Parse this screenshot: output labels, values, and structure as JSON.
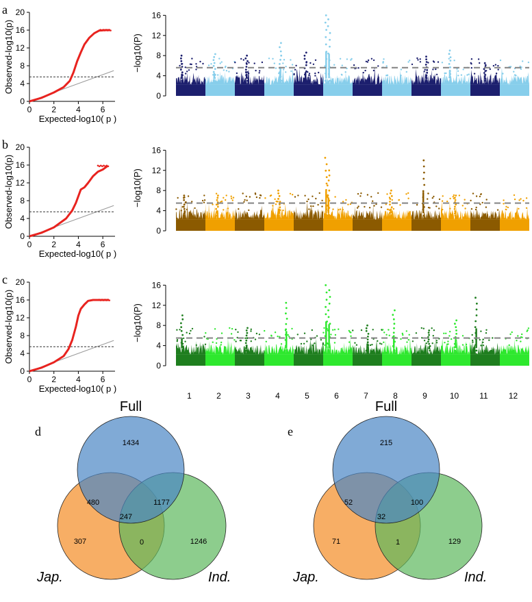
{
  "figure": {
    "panels": [
      {
        "label": "a",
        "qq": {
          "xlabel": "Expected-log10( p )",
          "ylabel": "Observed-log10(p)",
          "xticks": [
            "0",
            "2",
            "4",
            "6"
          ],
          "yticks": [
            "0",
            "4",
            "8",
            "12",
            "16",
            "20"
          ],
          "threshold": 5.5,
          "color": "#e8231f",
          "curve": [
            [
              0,
              0
            ],
            [
              1,
              0.8
            ],
            [
              2,
              2.0
            ],
            [
              2.8,
              3.2
            ],
            [
              3.3,
              4.6
            ],
            [
              3.6,
              6.5
            ],
            [
              3.9,
              9.0
            ],
            [
              4.2,
              11.0
            ],
            [
              4.5,
              12.8
            ],
            [
              4.9,
              14.3
            ],
            [
              5.3,
              15.3
            ],
            [
              5.7,
              15.9
            ],
            [
              6.2,
              16.0
            ],
            [
              6.6,
              16.0
            ]
          ]
        },
        "manhattan": {
          "ylabel": "−log10(P)",
          "yticks": [
            "0",
            "4",
            "8",
            "12",
            "16"
          ],
          "threshold": 5.6,
          "colors": [
            "#1c1f6e",
            "#87ceeb"
          ],
          "peaks": [
            {
              "chr": 1,
              "pos": 0.2,
              "value": 8.0
            },
            {
              "chr": 2,
              "pos": 0.3,
              "value": 8.3
            },
            {
              "chr": 3,
              "pos": 0.4,
              "value": 8.0
            },
            {
              "chr": 4,
              "pos": 0.55,
              "value": 10.5
            },
            {
              "chr": 5,
              "pos": 0.4,
              "value": 8.6
            },
            {
              "chr": 6,
              "pos": 0.1,
              "value": 16.0
            },
            {
              "chr": 6,
              "pos": 0.2,
              "value": 15.2
            },
            {
              "chr": 9,
              "pos": 0.5,
              "value": 7.8
            },
            {
              "chr": 10,
              "pos": 0.3,
              "value": 9.0
            },
            {
              "chr": 11,
              "pos": 0.5,
              "value": 6.5
            }
          ]
        }
      },
      {
        "label": "b",
        "qq": {
          "xlabel": "Expected-log10( p )",
          "ylabel": "Observed-log10(p)",
          "xticks": [
            "0",
            "2",
            "4",
            "6"
          ],
          "yticks": [
            "0",
            "4",
            "8",
            "12",
            "16",
            "20"
          ],
          "threshold": 5.5,
          "color": "#e8231f",
          "curve": [
            [
              0,
              0
            ],
            [
              1,
              0.8
            ],
            [
              2,
              2.0
            ],
            [
              3,
              4.0
            ],
            [
              3.5,
              5.8
            ],
            [
              3.8,
              7.5
            ],
            [
              4.0,
              9.0
            ],
            [
              4.2,
              10.5
            ],
            [
              4.5,
              11.0
            ],
            [
              4.8,
              12.0
            ],
            [
              5.2,
              13.5
            ],
            [
              5.6,
              14.5
            ],
            [
              6.0,
              15.0
            ],
            [
              6.4,
              15.8
            ]
          ]
        },
        "manhattan": {
          "ylabel": "−log10(P)",
          "yticks": [
            "0",
            "4",
            "8",
            "12",
            "16"
          ],
          "threshold": 5.5,
          "colors": [
            "#8b5a00",
            "#f0a000"
          ],
          "peaks": [
            {
              "chr": 1,
              "pos": 0.3,
              "value": 7.0
            },
            {
              "chr": 2,
              "pos": 0.4,
              "value": 7.0
            },
            {
              "chr": 4,
              "pos": 0.5,
              "value": 8.0
            },
            {
              "chr": 6,
              "pos": 0.1,
              "value": 14.5
            },
            {
              "chr": 6,
              "pos": 0.18,
              "value": 12.0
            },
            {
              "chr": 8,
              "pos": 0.3,
              "value": 8.0
            },
            {
              "chr": 9,
              "pos": 0.4,
              "value": 14.0
            },
            {
              "chr": 10,
              "pos": 0.5,
              "value": 7.0
            }
          ]
        }
      },
      {
        "label": "c",
        "qq": {
          "xlabel": "Expected-log10( p )",
          "ylabel": "Observed-log10(p)",
          "xticks": [
            "0",
            "2",
            "4",
            "6"
          ],
          "yticks": [
            "0",
            "4",
            "8",
            "12",
            "16",
            "20"
          ],
          "threshold": 5.5,
          "color": "#e8231f",
          "curve": [
            [
              0,
              0
            ],
            [
              1,
              0.8
            ],
            [
              2,
              2.0
            ],
            [
              2.8,
              3.4
            ],
            [
              3.2,
              5.0
            ],
            [
              3.5,
              7.0
            ],
            [
              3.8,
              10.0
            ],
            [
              4.0,
              12.5
            ],
            [
              4.2,
              14.0
            ],
            [
              4.5,
              15.0
            ],
            [
              4.8,
              15.8
            ],
            [
              5.2,
              16.0
            ],
            [
              6.5,
              16.0
            ]
          ]
        },
        "manhattan": {
          "ylabel": "−log10(P)",
          "yticks": [
            "0",
            "4",
            "8",
            "12",
            "16"
          ],
          "threshold": 5.5,
          "colors": [
            "#1e7e1e",
            "#2ee82e"
          ],
          "peaks": [
            {
              "chr": 1,
              "pos": 0.2,
              "value": 10.0
            },
            {
              "chr": 3,
              "pos": 0.4,
              "value": 7.5
            },
            {
              "chr": 4,
              "pos": 0.75,
              "value": 12.5
            },
            {
              "chr": 6,
              "pos": 0.1,
              "value": 16.0
            },
            {
              "chr": 6,
              "pos": 0.2,
              "value": 15.0
            },
            {
              "chr": 7,
              "pos": 0.5,
              "value": 8.0
            },
            {
              "chr": 8,
              "pos": 0.4,
              "value": 11.0
            },
            {
              "chr": 9,
              "pos": 0.6,
              "value": 7.0
            },
            {
              "chr": 10,
              "pos": 0.5,
              "value": 9.0
            },
            {
              "chr": 11,
              "pos": 0.2,
              "value": 13.5
            }
          ]
        }
      }
    ],
    "chromosomes": [
      "1",
      "2",
      "3",
      "4",
      "5",
      "6",
      "7",
      "8",
      "9",
      "10",
      "11",
      "12"
    ]
  },
  "venns": [
    {
      "label": "d",
      "sets": [
        "Full",
        "Jap.",
        "Ind."
      ],
      "colors": [
        "#4a86c5",
        "#f59a3e",
        "#5cb85c"
      ],
      "regions": {
        "full_only": "1434",
        "jap_only": "307",
        "ind_only": "1246",
        "full_jap": "480",
        "full_ind": "1177",
        "jap_ind": "0",
        "all": "247"
      }
    },
    {
      "label": "e",
      "sets": [
        "Full",
        "Jap.",
        "Ind."
      ],
      "colors": [
        "#4a86c5",
        "#f59a3e",
        "#5cb85c"
      ],
      "regions": {
        "full_only": "215",
        "jap_only": "71",
        "ind_only": "129",
        "full_jap": "52",
        "full_ind": "100",
        "jap_ind": "1",
        "all": "32"
      }
    }
  ],
  "chart_data": [
    {
      "type": "scatter",
      "panel": "a",
      "subtype": "qq",
      "xlabel": "Expected-log10( p )",
      "ylabel": "Observed-log10(p)",
      "xlim": [
        0,
        7
      ],
      "ylim": [
        0,
        20
      ],
      "threshold": 5.5
    },
    {
      "type": "scatter",
      "panel": "a",
      "subtype": "manhattan",
      "ylabel": "−log10(P)",
      "ylim": [
        0,
        17
      ],
      "threshold": 5.6,
      "categories": [
        "1",
        "2",
        "3",
        "4",
        "5",
        "6",
        "7",
        "8",
        "9",
        "10",
        "11",
        "12"
      ]
    },
    {
      "type": "scatter",
      "panel": "b",
      "subtype": "qq",
      "xlabel": "Expected-log10( p )",
      "ylabel": "Observed-log10(p)",
      "xlim": [
        0,
        7
      ],
      "ylim": [
        0,
        20
      ],
      "threshold": 5.5
    },
    {
      "type": "scatter",
      "panel": "b",
      "subtype": "manhattan",
      "ylabel": "−log10(P)",
      "ylim": [
        0,
        17
      ],
      "threshold": 5.5,
      "categories": [
        "1",
        "2",
        "3",
        "4",
        "5",
        "6",
        "7",
        "8",
        "9",
        "10",
        "11",
        "12"
      ]
    },
    {
      "type": "scatter",
      "panel": "c",
      "subtype": "qq",
      "xlabel": "Expected-log10( p )",
      "ylabel": "Observed-log10(p)",
      "xlim": [
        0,
        7
      ],
      "ylim": [
        0,
        20
      ],
      "threshold": 5.5
    },
    {
      "type": "scatter",
      "panel": "c",
      "subtype": "manhattan",
      "ylabel": "−log10(P)",
      "ylim": [
        0,
        17
      ],
      "threshold": 5.5,
      "categories": [
        "1",
        "2",
        "3",
        "4",
        "5",
        "6",
        "7",
        "8",
        "9",
        "10",
        "11",
        "12"
      ]
    },
    {
      "type": "venn",
      "panel": "d",
      "sets": [
        "Full",
        "Jap.",
        "Ind."
      ],
      "values": {
        "Full only": 1434,
        "Jap. only": 307,
        "Ind. only": 1246,
        "Full&Jap.": 480,
        "Full&Ind.": 1177,
        "Jap.&Ind.": 0,
        "All": 247
      }
    },
    {
      "type": "venn",
      "panel": "e",
      "sets": [
        "Full",
        "Jap.",
        "Ind."
      ],
      "values": {
        "Full only": 215,
        "Jap. only": 71,
        "Ind. only": 129,
        "Full&Jap.": 52,
        "Full&Ind.": 100,
        "Jap.&Ind.": 1,
        "All": 32
      }
    }
  ]
}
